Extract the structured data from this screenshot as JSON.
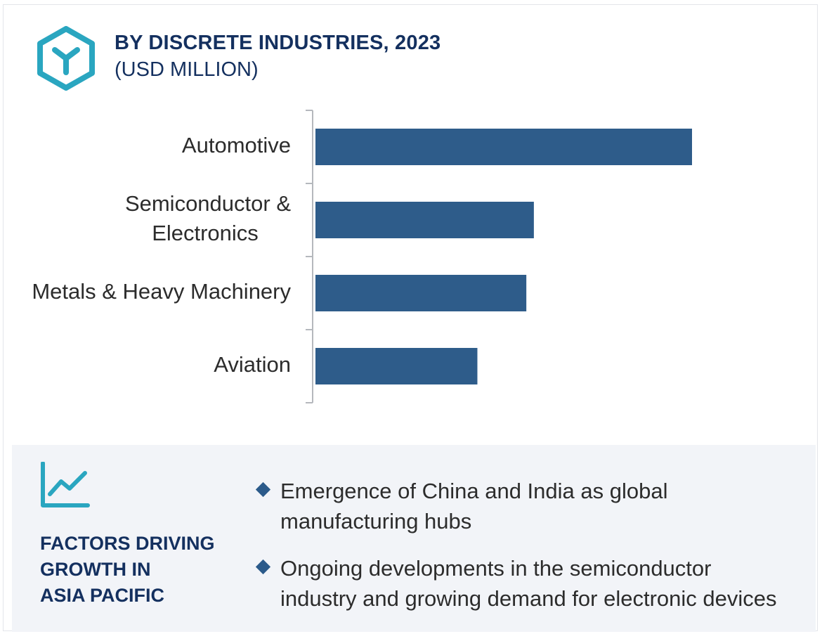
{
  "header": {
    "title": "BY DISCRETE INDUSTRIES, 2023",
    "subtitle": "(USD MILLION)",
    "logo_icon": "hexagon-y-logo-icon"
  },
  "colors": {
    "bar": "#2e5c8a",
    "title": "#14305f",
    "accent_teal": "#2aa6c0",
    "panel_bg": "#f2f4f8"
  },
  "chart_data": {
    "type": "bar",
    "orientation": "horizontal",
    "title": "BY DISCRETE INDUSTRIES, 2023",
    "subtitle": "(USD MILLION)",
    "categories": [
      [
        "Automotive"
      ],
      [
        "Semiconductor &",
        "Electronics"
      ],
      [
        "Metals & Heavy Machinery"
      ],
      [
        "Aviation"
      ]
    ],
    "values": [
      100,
      58,
      56,
      43
    ],
    "xlim": [
      0,
      100
    ],
    "grid": false,
    "legend": "none"
  },
  "factors": {
    "icon": "trend-line-icon",
    "title_lines": [
      "FACTORS DRIVING",
      "GROWTH IN",
      "ASIA PACIFIC"
    ],
    "items": [
      {
        "icon": "diamond-bullet-icon",
        "lines": [
          "Emergence of China and India as global",
          "manufacturing hubs"
        ]
      },
      {
        "icon": "diamond-bullet-icon",
        "lines": [
          "Ongoing developments in the semiconductor",
          "industry and growing demand for electronic devices"
        ]
      }
    ]
  }
}
